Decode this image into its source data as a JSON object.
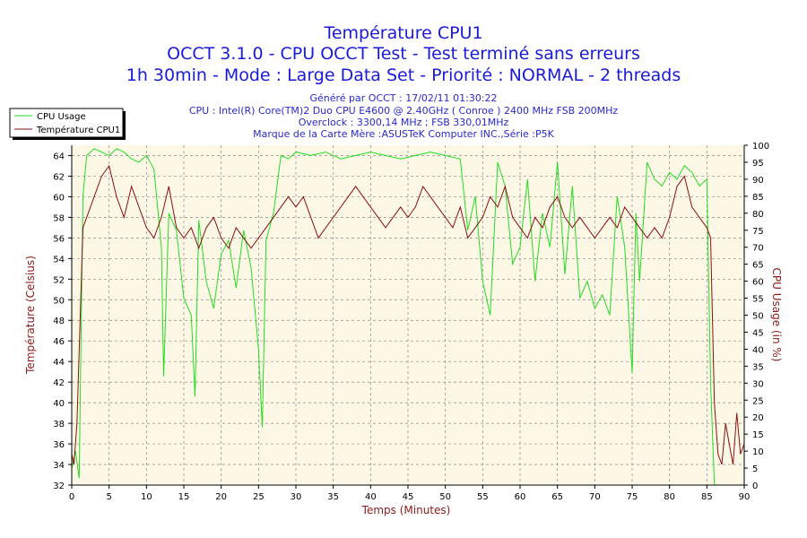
{
  "header": {
    "title1": "Température CPU1",
    "title2": "OCCT 3.1.0 - CPU OCCT Test - Test terminé sans erreurs",
    "title3": "1h 30min - Mode : Large Data Set - Priorité : NORMAL - 2 threads",
    "info": [
      "Généré par OCCT : 17/02/11 01:30:22",
      "CPU : Intel(R) Core(TM)2 Duo CPU E4600 @ 2.40GHz ( Conroe ) 2400 MHz FSB 200MHz",
      "Overclock : 3300,14 MHz ; FSB 330,01MHz",
      "Marque de la Carte Mère :ASUSTeK Computer INC.,Série :P5K"
    ]
  },
  "colors": {
    "usage": "#22dd22",
    "temperature": "#8b1010",
    "plot_bg": "#fdf8e6",
    "grid": "#888888",
    "axis_text": "#8b1a1a"
  },
  "chart_data": {
    "type": "line",
    "xlabel": "Temps (Minutes)",
    "ylabel_left": "Température (Celsius)",
    "ylabel_right": "CPU Usage (in %)",
    "xlim": [
      0,
      90
    ],
    "ylim_left": [
      32,
      65
    ],
    "ylim_right": [
      0,
      100
    ],
    "x_ticks": [
      0,
      5,
      10,
      15,
      20,
      25,
      30,
      35,
      40,
      45,
      50,
      55,
      60,
      65,
      70,
      75,
      80,
      85,
      90
    ],
    "y_ticks_left": [
      32,
      34,
      36,
      38,
      40,
      42,
      44,
      46,
      48,
      50,
      52,
      54,
      56,
      58,
      60,
      62,
      64
    ],
    "y_ticks_right": [
      0,
      5,
      10,
      15,
      20,
      25,
      30,
      35,
      40,
      45,
      50,
      55,
      60,
      65,
      70,
      75,
      80,
      85,
      90,
      95,
      100
    ],
    "grid": true,
    "legend_position": "top-left",
    "series": [
      {
        "name": "CPU Usage",
        "axis": "right",
        "x": [
          0,
          0.5,
          1,
          1.5,
          2,
          2.5,
          3,
          4,
          5,
          6,
          7,
          8,
          9,
          10,
          11,
          12,
          12.3,
          13,
          14,
          15,
          16,
          16.5,
          17,
          18,
          19,
          20,
          21,
          22,
          23,
          24,
          25,
          25.5,
          26,
          27,
          28,
          29,
          30,
          32,
          34,
          36,
          38,
          40,
          42,
          44,
          46,
          48,
          50,
          52,
          53,
          54,
          55,
          56,
          57,
          58,
          59,
          60,
          61,
          62,
          63,
          64,
          65,
          66,
          67,
          68,
          69,
          70,
          71,
          72,
          73,
          74,
          75,
          75.5,
          76,
          77,
          78,
          79,
          80,
          81,
          82,
          83,
          84,
          85,
          85.5,
          86,
          87,
          88,
          89,
          90
        ],
        "values": [
          5,
          10,
          2,
          85,
          97,
          98,
          99,
          98,
          97,
          99,
          98,
          96,
          95,
          97,
          93,
          70,
          32,
          80,
          75,
          55,
          50,
          26,
          78,
          60,
          52,
          68,
          72,
          58,
          75,
          64,
          40,
          17,
          72,
          80,
          97,
          96,
          98,
          97,
          98,
          96,
          97,
          98,
          97,
          96,
          97,
          98,
          97,
          96,
          75,
          85,
          60,
          50,
          95,
          88,
          65,
          70,
          90,
          60,
          80,
          70,
          95,
          62,
          88,
          55,
          60,
          52,
          56,
          50,
          85,
          70,
          33,
          80,
          60,
          95,
          90,
          88,
          92,
          90,
          94,
          92,
          88,
          90,
          30,
          0,
          0,
          0,
          0,
          0
        ]
      },
      {
        "name": "Température CPU1",
        "axis": "left",
        "x": [
          0,
          0.3,
          0.7,
          1,
          1.5,
          2,
          3,
          4,
          5,
          6,
          7,
          8,
          9,
          10,
          11,
          12,
          13,
          14,
          15,
          16,
          17,
          18,
          19,
          20,
          21,
          22,
          23,
          24,
          25,
          26,
          27,
          28,
          29,
          30,
          31,
          32,
          33,
          34,
          35,
          36,
          37,
          38,
          39,
          40,
          41,
          42,
          43,
          44,
          45,
          46,
          47,
          48,
          49,
          50,
          51,
          52,
          53,
          54,
          55,
          56,
          57,
          58,
          59,
          60,
          61,
          62,
          63,
          64,
          65,
          66,
          67,
          68,
          69,
          70,
          71,
          72,
          73,
          74,
          75,
          76,
          77,
          78,
          79,
          80,
          81,
          82,
          83,
          84,
          85,
          85.5,
          86,
          86.5,
          87,
          87.5,
          88,
          88.5,
          89,
          89.5,
          90
        ],
        "values": [
          35,
          34,
          38,
          45,
          57,
          58,
          60,
          62,
          63,
          60,
          58,
          61,
          59,
          57,
          56,
          58,
          61,
          57,
          56,
          57,
          55,
          57,
          58,
          56,
          55,
          57,
          56,
          55,
          56,
          57,
          58,
          59,
          60,
          59,
          60,
          58,
          56,
          57,
          58,
          59,
          60,
          61,
          60,
          59,
          58,
          57,
          58,
          59,
          58,
          59,
          61,
          60,
          59,
          58,
          57,
          59,
          56,
          57,
          58,
          60,
          59,
          61,
          58,
          57,
          56,
          58,
          57,
          59,
          60,
          58,
          57,
          58,
          57,
          56,
          57,
          58,
          57,
          59,
          58,
          57,
          56,
          57,
          56,
          58,
          61,
          62,
          59,
          58,
          57,
          56,
          40,
          35,
          34,
          38,
          36,
          34,
          39,
          35,
          36
        ]
      }
    ]
  }
}
